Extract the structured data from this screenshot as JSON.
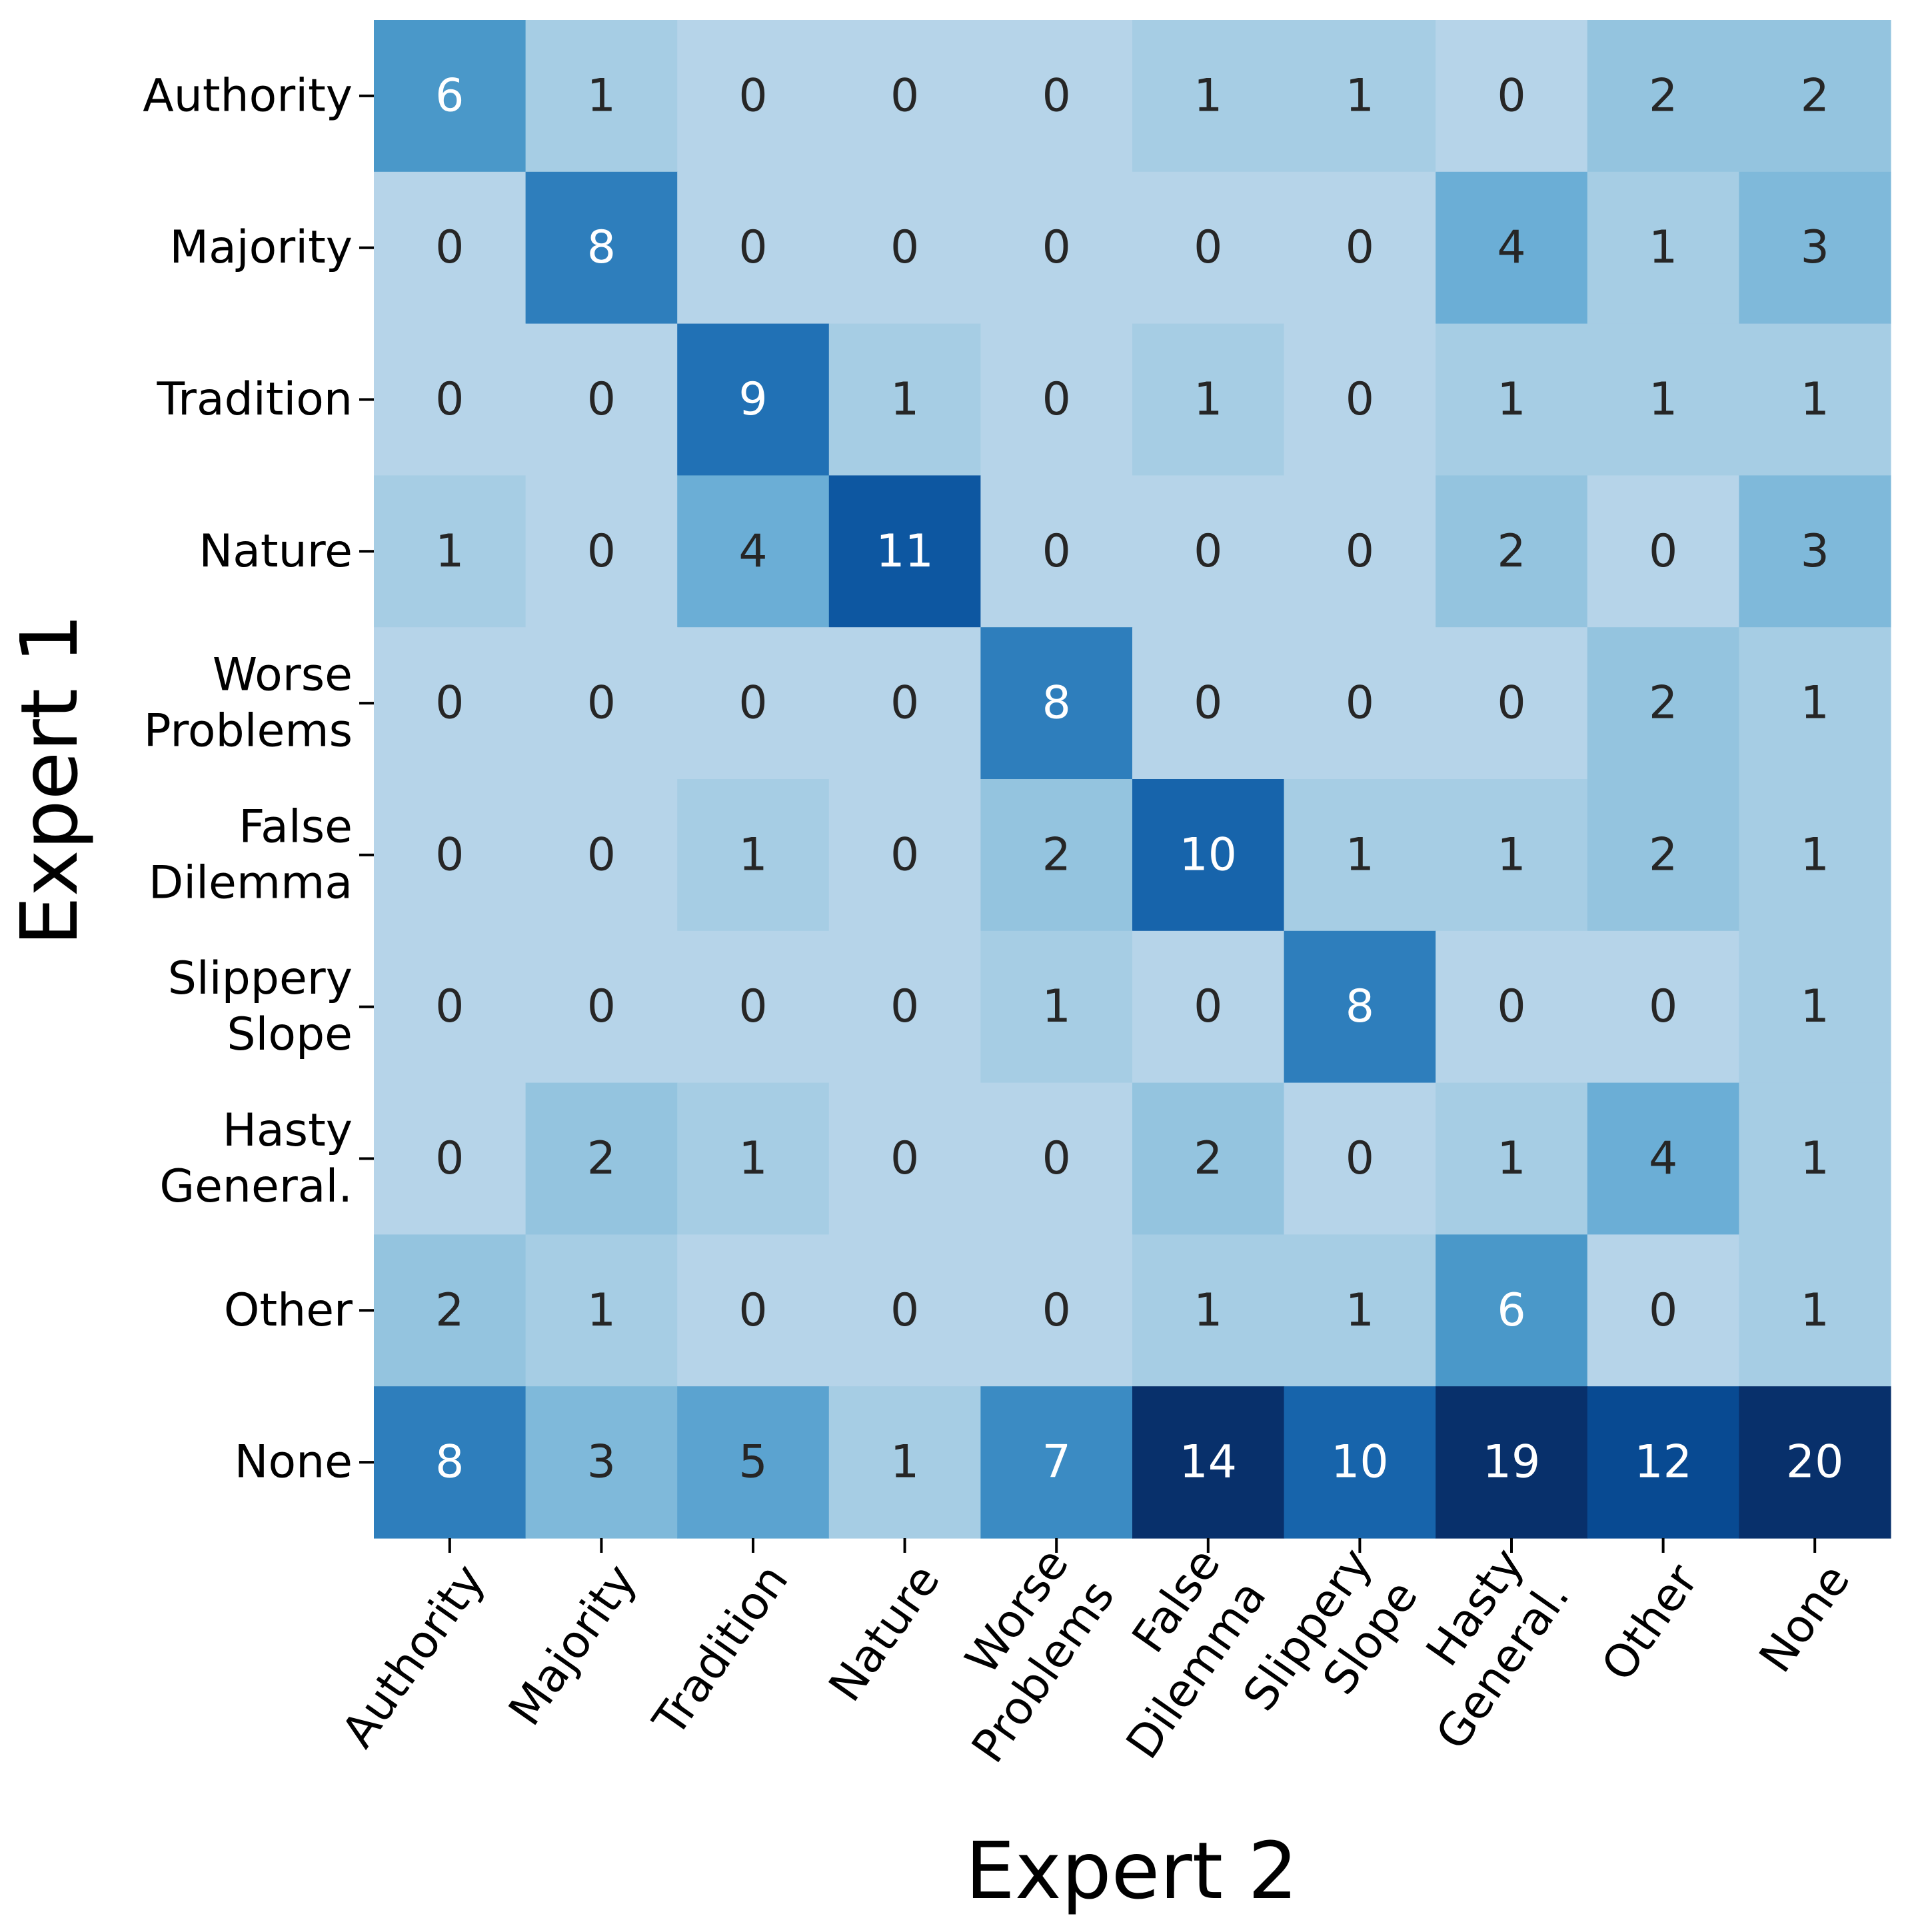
{
  "chart_data": {
    "type": "heatmap",
    "title": "",
    "xlabel": "Expert 2",
    "ylabel": "Expert 1",
    "x_categories": [
      [
        "Authority"
      ],
      [
        "Majority"
      ],
      [
        "Tradition"
      ],
      [
        "Nature"
      ],
      [
        "Worse",
        "Problems"
      ],
      [
        "False",
        "Dilemma"
      ],
      [
        "Slippery",
        "Slope"
      ],
      [
        "Hasty",
        "General."
      ],
      [
        "Other"
      ],
      [
        "None"
      ]
    ],
    "y_categories": [
      [
        "Authority"
      ],
      [
        "Majority"
      ],
      [
        "Tradition"
      ],
      [
        "Nature"
      ],
      [
        "Worse",
        "Problems"
      ],
      [
        "False",
        "Dilemma"
      ],
      [
        "Slippery",
        "Slope"
      ],
      [
        "Hasty",
        "General."
      ],
      [
        "Other"
      ],
      [
        "None"
      ]
    ],
    "values": [
      [
        6,
        1,
        0,
        0,
        0,
        1,
        1,
        0,
        2,
        2
      ],
      [
        0,
        8,
        0,
        0,
        0,
        0,
        0,
        4,
        1,
        3
      ],
      [
        0,
        0,
        9,
        1,
        0,
        1,
        0,
        1,
        1,
        1
      ],
      [
        1,
        0,
        4,
        11,
        0,
        0,
        0,
        2,
        0,
        3
      ],
      [
        0,
        0,
        0,
        0,
        8,
        0,
        0,
        0,
        2,
        1
      ],
      [
        0,
        0,
        1,
        0,
        2,
        10,
        1,
        1,
        2,
        1
      ],
      [
        0,
        0,
        0,
        0,
        1,
        0,
        8,
        0,
        0,
        1
      ],
      [
        0,
        2,
        1,
        0,
        0,
        2,
        0,
        1,
        4,
        1
      ],
      [
        2,
        1,
        0,
        0,
        0,
        1,
        1,
        6,
        0,
        1
      ],
      [
        8,
        3,
        5,
        1,
        7,
        14,
        10,
        19,
        12,
        20
      ]
    ],
    "colormap": "Blues",
    "value_range": [
      0,
      14
    ],
    "colorbar": false
  }
}
